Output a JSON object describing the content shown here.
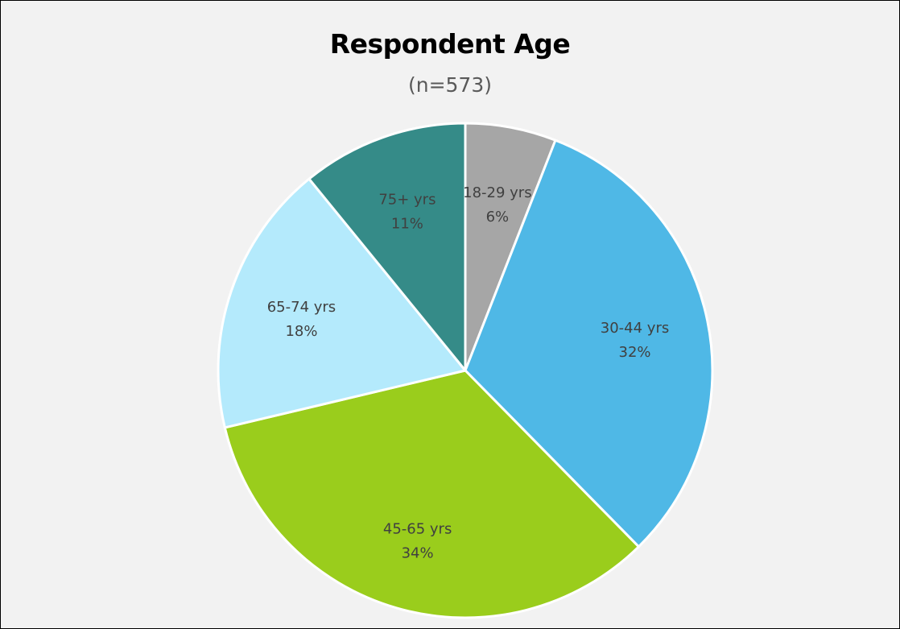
{
  "chart_data": {
    "type": "pie",
    "title": "Respondent Age",
    "subtitle": "(n=573)",
    "slices": [
      {
        "label": "18-29 yrs",
        "value": 6,
        "display": "6%",
        "color": "#a6a6a6"
      },
      {
        "label": "30-44 yrs",
        "value": 32,
        "display": "32%",
        "color": "#4fb8e6"
      },
      {
        "label": "45-65 yrs",
        "value": 34,
        "display": "34%",
        "color": "#9acd1c"
      },
      {
        "label": "65-74 yrs",
        "value": 18,
        "display": "18%",
        "color": "#b4eafc"
      },
      {
        "label": "75+ yrs",
        "value": 11,
        "display": "11%",
        "color": "#358b88"
      }
    ],
    "start_angle_deg": 0,
    "direction": "clockwise",
    "slice_border_color": "#ffffff",
    "legend": "none"
  }
}
